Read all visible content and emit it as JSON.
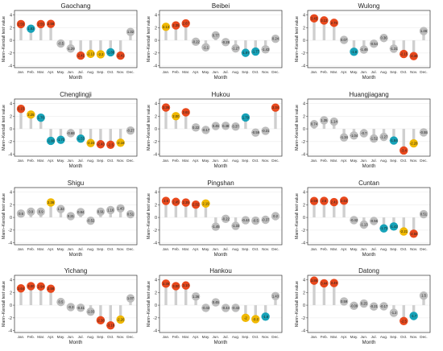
{
  "figure": {
    "xlabel": "Month",
    "ylabel": "Mann–Kendall test value",
    "months": [
      "Jan.",
      "Feb.",
      "Mar.",
      "Apr.",
      "May.",
      "Jun.",
      "Jul.",
      "Aug.",
      "Sep.",
      "Oct.",
      "Nov.",
      "Dec."
    ],
    "yticks": [
      -4,
      -2,
      0,
      2,
      4
    ],
    "ylim": [
      -4.3,
      4.7
    ],
    "colors": {
      "red": "#e8481c",
      "yellow": "#f0b800",
      "teal": "#16a2b8",
      "gray": "#bdbdbd",
      "stem": "#cfcfcf",
      "panel_border": "#333333",
      "grid": "#ececec"
    }
  },
  "chart_data": [
    {
      "type": "lollipop",
      "title": "Gaochang",
      "values": [
        2.55,
        1.83,
        2.55,
        2.58,
        -0.5,
        -1.29,
        -2.41,
        -2.13,
        -2.2,
        -1.88,
        -2.41,
        1.32
      ],
      "colors": [
        "red",
        "teal",
        "red",
        "red",
        "gray",
        "gray",
        "red",
        "yellow",
        "yellow",
        "teal",
        "red",
        "gray"
      ],
      "labels": [
        "2.55",
        "1.83",
        "2.55",
        "2.58",
        "-0.5",
        "-1.29",
        "-2.41",
        "-2.13",
        "-2.2",
        "-1.88",
        "-2.41",
        "1.32"
      ]
    },
    {
      "type": "lollipop",
      "title": "Beibei",
      "values": [
        2.13,
        2.35,
        2.67,
        -0.22,
        -1.1,
        0.77,
        -0.28,
        -1.27,
        -1.97,
        -1.77,
        -1.43,
        0.24
      ],
      "colors": [
        "yellow",
        "red",
        "red",
        "gray",
        "gray",
        "gray",
        "gray",
        "gray",
        "teal",
        "teal",
        "gray",
        "gray"
      ],
      "labels": [
        "2.13",
        "2.35",
        "2.67",
        "-0.22",
        "-1.1",
        "0.77",
        "-0.28",
        "-1.27",
        "-1.97",
        "-1.77",
        "-1.43",
        "0.24"
      ]
    },
    {
      "type": "lollipop",
      "title": "Wulong",
      "values": [
        3.45,
        3.13,
        2.75,
        0.07,
        -1.8,
        -1.46,
        -0.54,
        0.36,
        -1.31,
        -2.15,
        -2.48,
        1.46
      ],
      "colors": [
        "red",
        "red",
        "red",
        "gray",
        "teal",
        "gray",
        "gray",
        "gray",
        "gray",
        "red",
        "red",
        "gray"
      ],
      "labels": [
        "3.45",
        "3.13",
        "2.75",
        "0.07",
        "-1.8",
        "-1.46",
        "-0.54",
        "0.36",
        "-1.31",
        "-2.15",
        "-2.48",
        "1.46"
      ]
    },
    {
      "type": "lollipop",
      "title": "Chenglingji",
      "values": [
        3.15,
        2.25,
        1.76,
        -1.88,
        -1.73,
        -0.68,
        -1.53,
        -2.23,
        -2.43,
        -2.5,
        -2.18,
        -0.27
      ],
      "colors": [
        "red",
        "yellow",
        "teal",
        "teal",
        "teal",
        "gray",
        "teal",
        "yellow",
        "red",
        "red",
        "yellow",
        "gray"
      ],
      "labels": [
        "3.15",
        "2.25",
        "1.76",
        "-1.88",
        "-1.73",
        "-0.68",
        "-1.53",
        "-2.23",
        "-2.43",
        "-2.5",
        "-2.18",
        "-0.27"
      ]
    },
    {
      "type": "lollipop",
      "title": "Hukou",
      "values": [
        3.36,
        2.0,
        2.61,
        0.22,
        -0.17,
        0.45,
        0.48,
        0.37,
        1.79,
        -0.59,
        -0.31,
        3.34
      ],
      "colors": [
        "red",
        "yellow",
        "red",
        "gray",
        "gray",
        "gray",
        "gray",
        "gray",
        "teal",
        "gray",
        "gray",
        "red"
      ],
      "labels": [
        "3.36",
        "2.00",
        "2.61",
        "0.22",
        "-0.17",
        "0.45",
        "0.48",
        "0.37",
        "1.79",
        "-0.59",
        "-0.31",
        "3.34"
      ]
    },
    {
      "type": "lollipop",
      "title": "Huangjiagang",
      "values": [
        0.74,
        1.35,
        1.14,
        -1.34,
        -1.04,
        -0.7,
        -1.52,
        -1.27,
        -1.84,
        -3.4,
        -2.28,
        -0.55
      ],
      "colors": [
        "gray",
        "gray",
        "gray",
        "gray",
        "gray",
        "gray",
        "gray",
        "gray",
        "teal",
        "red",
        "yellow",
        "gray"
      ],
      "labels": [
        "0.74",
        "1.35",
        "1.14",
        "-1.34",
        "-1.04",
        "-0.7",
        "-1.52",
        "-1.27",
        "-1.84",
        "-3.4",
        "-2.28",
        "-0.55"
      ]
    },
    {
      "type": "lollipop",
      "title": "Shigu",
      "values": [
        0.6,
        0.9,
        0.9,
        2.36,
        1.32,
        0.21,
        0.84,
        -0.52,
        0.91,
        1.16,
        1.43,
        0.51
      ],
      "colors": [
        "gray",
        "gray",
        "gray",
        "yellow",
        "gray",
        "gray",
        "gray",
        "gray",
        "gray",
        "gray",
        "gray",
        "gray"
      ],
      "labels": [
        "0.6",
        "0.9",
        "0.9",
        "2.36",
        "1.32",
        "0.21",
        "0.84",
        "-0.52",
        "0.91",
        "1.16",
        "1.43",
        "0.51"
      ]
    },
    {
      "type": "lollipop",
      "title": "Pingshan",
      "values": [
        2.6,
        2.45,
        2.35,
        2.02,
        2.19,
        -1.45,
        -0.22,
        -1.33,
        -0.44,
        -0.5,
        -0.37,
        0.2
      ],
      "colors": [
        "red",
        "red",
        "red",
        "red",
        "yellow",
        "gray",
        "gray",
        "gray",
        "gray",
        "gray",
        "gray",
        "gray"
      ],
      "labels": [
        "2.6",
        "2.45",
        "2.35",
        "2.02",
        "2.19",
        "-1.45",
        "-0.22",
        "-1.33",
        "-0.44",
        "-0.5",
        "-0.37",
        "0.2"
      ]
    },
    {
      "type": "lollipop",
      "title": "Cuntan",
      "values": [
        2.59,
        2.6,
        2.41,
        2.63,
        -0.42,
        -1.13,
        -0.56,
        -1.72,
        -1.43,
        -2.21,
        -2.56,
        0.51
      ],
      "colors": [
        "red",
        "red",
        "red",
        "red",
        "gray",
        "gray",
        "gray",
        "teal",
        "teal",
        "yellow",
        "red",
        "gray"
      ],
      "labels": [
        "2.59",
        "2.6",
        "2.41",
        "2.63",
        "-0.42",
        "-1.13",
        "-0.56",
        "-1.72",
        "-1.43",
        "-2.21",
        "-2.56",
        "0.51"
      ]
    },
    {
      "type": "lollipop",
      "title": "Yichang",
      "values": [
        2.64,
        3.0,
        2.94,
        2.58,
        0.5,
        -0.3,
        -0.41,
        -1.03,
        -2.38,
        -3.18,
        -2.26,
        1.07
      ],
      "colors": [
        "red",
        "red",
        "red",
        "red",
        "gray",
        "gray",
        "gray",
        "gray",
        "red",
        "red",
        "yellow",
        "gray"
      ],
      "labels": [
        "2.64",
        "3.00",
        "2.94",
        "2.58",
        "0.5",
        "-0.3",
        "-0.41",
        "-1.03",
        "-2.38",
        "-3.18",
        "-2.26",
        "1.07"
      ]
    },
    {
      "type": "lollipop",
      "title": "Hankou",
      "values": [
        3.39,
        3.0,
        3.1,
        1.36,
        -0.43,
        0.45,
        -0.44,
        -0.43,
        -2.0,
        -2.2,
        -1.8,
        1.43
      ],
      "colors": [
        "red",
        "red",
        "red",
        "gray",
        "gray",
        "gray",
        "gray",
        "gray",
        "yellow",
        "yellow",
        "teal",
        "gray"
      ],
      "labels": [
        "3.39",
        "3.00",
        "3.10",
        "1.36",
        "-0.43",
        "0.45",
        "-0.44",
        "-0.43",
        "-2",
        "-2.2",
        "-1.8",
        "1.43"
      ]
    },
    {
      "type": "lollipop",
      "title": "Datong",
      "values": [
        3.86,
        3.44,
        3.49,
        0.59,
        -0.09,
        0.25,
        -0.21,
        -0.17,
        -1.2,
        -2.5,
        -1.7,
        1.5
      ],
      "colors": [
        "red",
        "red",
        "red",
        "gray",
        "gray",
        "gray",
        "gray",
        "gray",
        "gray",
        "red",
        "teal",
        "gray"
      ],
      "labels": [
        "3.86",
        "3.44",
        "3.49",
        "0.59",
        "-0.09",
        "0.25",
        "-0.21",
        "-0.17",
        "-1.2",
        "-2.5",
        "-1.7",
        "1.5"
      ]
    }
  ]
}
